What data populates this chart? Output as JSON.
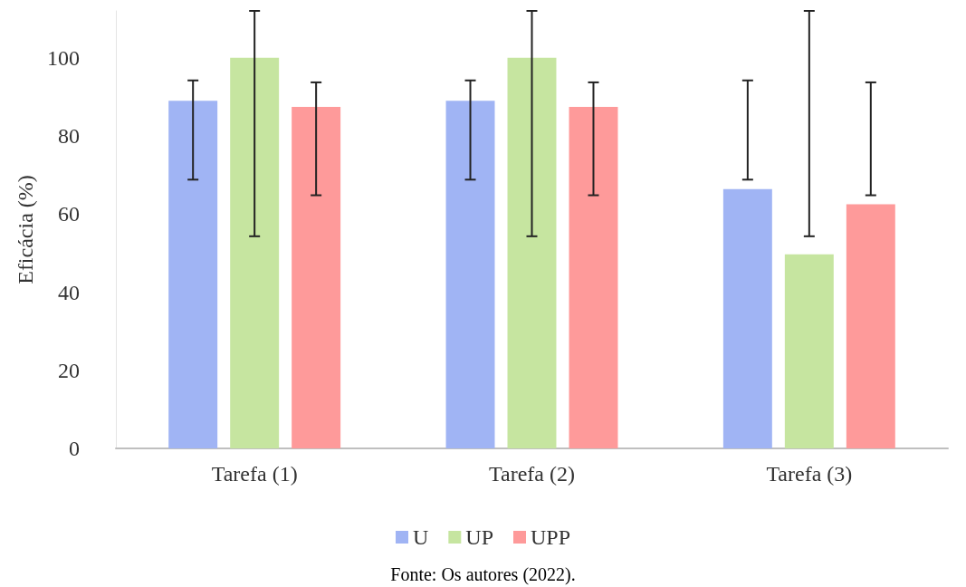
{
  "chart_data": {
    "type": "bar",
    "ylabel": "Eficácia (%)",
    "categories": [
      "Tarefa (1)",
      "Tarefa (2)",
      "Tarefa (3)"
    ],
    "series": [
      {
        "name": "U",
        "color": "#a0b4f4",
        "values": [
          89,
          89,
          66.4
        ],
        "errors": [
          [
            68.8,
            94.2
          ],
          [
            68.8,
            94.2
          ],
          [
            68.8,
            94.2
          ]
        ]
      },
      {
        "name": "UP",
        "color": "#c6e5a0",
        "values": [
          100,
          100,
          49.7
        ],
        "errors": [
          [
            54.3,
            112
          ],
          [
            54.3,
            112
          ],
          [
            54.3,
            112
          ]
        ]
      },
      {
        "name": "UPP",
        "color": "#fe9a9a",
        "values": [
          87.4,
          87.4,
          62.5
        ],
        "errors": [
          [
            64.8,
            93.7
          ],
          [
            64.8,
            93.7
          ],
          [
            64.8,
            93.7
          ]
        ]
      }
    ],
    "ylim": [
      0,
      112
    ],
    "yticks": [
      0,
      20,
      40,
      60,
      80,
      100
    ],
    "grid": false,
    "legend": "bottom",
    "annotations": [
      "Fonte: Os autores (2022)."
    ]
  }
}
